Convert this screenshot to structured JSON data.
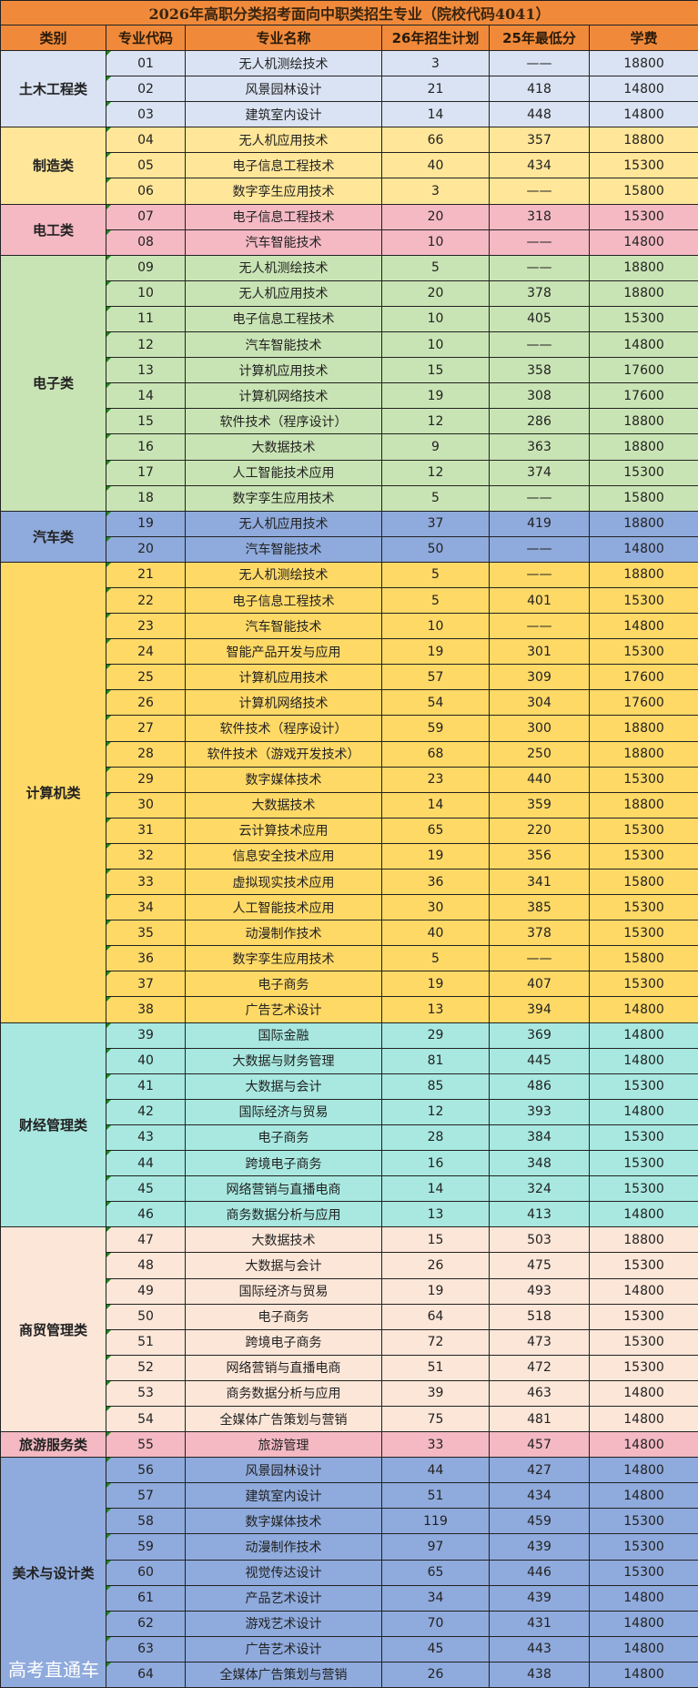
{
  "title": "2026年高职分类招考面向中职类招生专业（院校代码4041）",
  "headers": [
    "类别",
    "专业代码",
    "专业名称",
    "26年招生计划",
    "25年最低分",
    "学费"
  ],
  "watermark": "高考直通车",
  "groups": [
    {
      "name": "土木工程类",
      "color": "#DAE3F3",
      "rows": [
        [
          "01",
          "无人机测绘技术",
          "3",
          "——",
          "18800"
        ],
        [
          "02",
          "风景园林设计",
          "21",
          "418",
          "14800"
        ],
        [
          "03",
          "建筑室内设计",
          "14",
          "448",
          "14800"
        ]
      ]
    },
    {
      "name": "制造类",
      "color": "#FFE699",
      "rows": [
        [
          "04",
          "无人机应用技术",
          "66",
          "357",
          "18800"
        ],
        [
          "05",
          "电子信息工程技术",
          "40",
          "434",
          "15300"
        ],
        [
          "06",
          "数字孪生应用技术",
          "3",
          "——",
          "15800"
        ]
      ]
    },
    {
      "name": "电工类",
      "color": "#F4B9C3",
      "rows": [
        [
          "07",
          "电子信息工程技术",
          "20",
          "318",
          "15300"
        ],
        [
          "08",
          "汽车智能技术",
          "10",
          "——",
          "14800"
        ]
      ]
    },
    {
      "name": "电子类",
      "color": "#C9E4B4",
      "rows": [
        [
          "09",
          "无人机测绘技术",
          "5",
          "——",
          "18800"
        ],
        [
          "10",
          "无人机应用技术",
          "20",
          "378",
          "18800"
        ],
        [
          "11",
          "电子信息工程技术",
          "10",
          "405",
          "15300"
        ],
        [
          "12",
          "汽车智能技术",
          "10",
          "——",
          "14800"
        ],
        [
          "13",
          "计算机应用技术",
          "15",
          "358",
          "17600"
        ],
        [
          "14",
          "计算机网络技术",
          "19",
          "308",
          "17600"
        ],
        [
          "15",
          "软件技术（程序设计）",
          "12",
          "286",
          "18800"
        ],
        [
          "16",
          "大数据技术",
          "9",
          "363",
          "18800"
        ],
        [
          "17",
          "人工智能技术应用",
          "12",
          "374",
          "15300"
        ],
        [
          "18",
          "数字孪生应用技术",
          "5",
          "——",
          "15800"
        ]
      ]
    },
    {
      "name": "汽车类",
      "color": "#8FAADC",
      "rows": [
        [
          "19",
          "无人机应用技术",
          "37",
          "419",
          "18800"
        ],
        [
          "20",
          "汽车智能技术",
          "50",
          "——",
          "14800"
        ]
      ]
    },
    {
      "name": "计算机类",
      "color": "#FFD966",
      "rows": [
        [
          "21",
          "无人机测绘技术",
          "5",
          "——",
          "18800"
        ],
        [
          "22",
          "电子信息工程技术",
          "5",
          "401",
          "15300"
        ],
        [
          "23",
          "汽车智能技术",
          "10",
          "——",
          "14800"
        ],
        [
          "24",
          "智能产品开发与应用",
          "19",
          "301",
          "15300"
        ],
        [
          "25",
          "计算机应用技术",
          "57",
          "309",
          "17600"
        ],
        [
          "26",
          "计算机网络技术",
          "54",
          "304",
          "17600"
        ],
        [
          "27",
          "软件技术（程序设计）",
          "59",
          "300",
          "18800"
        ],
        [
          "28",
          "软件技术（游戏开发技术）",
          "68",
          "250",
          "18800"
        ],
        [
          "29",
          "数字媒体技术",
          "23",
          "440",
          "15300"
        ],
        [
          "30",
          "大数据技术",
          "14",
          "359",
          "18800"
        ],
        [
          "31",
          "云计算技术应用",
          "65",
          "220",
          "15300"
        ],
        [
          "32",
          "信息安全技术应用",
          "19",
          "356",
          "15300"
        ],
        [
          "33",
          "虚拟现实技术应用",
          "36",
          "341",
          "15800"
        ],
        [
          "34",
          "人工智能技术应用",
          "30",
          "385",
          "15300"
        ],
        [
          "35",
          "动漫制作技术",
          "40",
          "378",
          "15300"
        ],
        [
          "36",
          "数字孪生应用技术",
          "5",
          "——",
          "15800"
        ],
        [
          "37",
          "电子商务",
          "19",
          "407",
          "15300"
        ],
        [
          "38",
          "广告艺术设计",
          "13",
          "394",
          "14800"
        ]
      ]
    },
    {
      "name": "财经管理类",
      "color": "#A8E8E0",
      "rows": [
        [
          "39",
          "国际金融",
          "29",
          "369",
          "14800"
        ],
        [
          "40",
          "大数据与财务管理",
          "81",
          "445",
          "14800"
        ],
        [
          "41",
          "大数据与会计",
          "85",
          "486",
          "15300"
        ],
        [
          "42",
          "国际经济与贸易",
          "12",
          "393",
          "14800"
        ],
        [
          "43",
          "电子商务",
          "28",
          "384",
          "15300"
        ],
        [
          "44",
          "跨境电子商务",
          "16",
          "348",
          "15300"
        ],
        [
          "45",
          "网络营销与直播电商",
          "14",
          "324",
          "15300"
        ],
        [
          "46",
          "商务数据分析与应用",
          "13",
          "413",
          "14800"
        ]
      ]
    },
    {
      "name": "商贸管理类",
      "color": "#FCE6D8",
      "rows": [
        [
          "47",
          "大数据技术",
          "15",
          "503",
          "18800"
        ],
        [
          "48",
          "大数据与会计",
          "26",
          "475",
          "15300"
        ],
        [
          "49",
          "国际经济与贸易",
          "19",
          "493",
          "14800"
        ],
        [
          "50",
          "电子商务",
          "64",
          "518",
          "15300"
        ],
        [
          "51",
          "跨境电子商务",
          "72",
          "473",
          "15300"
        ],
        [
          "52",
          "网络营销与直播电商",
          "51",
          "472",
          "15300"
        ],
        [
          "53",
          "商务数据分析与应用",
          "39",
          "463",
          "14800"
        ],
        [
          "54",
          "全媒体广告策划与营销",
          "75",
          "481",
          "14800"
        ]
      ]
    },
    {
      "name": "旅游服务类",
      "color": "#F4B9C3",
      "rows": [
        [
          "55",
          "旅游管理",
          "33",
          "457",
          "14800"
        ]
      ]
    },
    {
      "name": "美术与设计类",
      "color": "#8FAADC",
      "rows": [
        [
          "56",
          "风景园林设计",
          "44",
          "427",
          "14800"
        ],
        [
          "57",
          "建筑室内设计",
          "51",
          "434",
          "14800"
        ],
        [
          "58",
          "数字媒体技术",
          "119",
          "459",
          "15300"
        ],
        [
          "59",
          "动漫制作技术",
          "97",
          "439",
          "15300"
        ],
        [
          "60",
          "视觉传达设计",
          "65",
          "446",
          "15300"
        ],
        [
          "61",
          "产品艺术设计",
          "34",
          "439",
          "14800"
        ],
        [
          "62",
          "游戏艺术设计",
          "70",
          "431",
          "14800"
        ],
        [
          "63",
          "广告艺术设计",
          "45",
          "443",
          "14800"
        ],
        [
          "64",
          "全媒体广告策划与营销",
          "26",
          "438",
          "14800"
        ]
      ]
    }
  ]
}
